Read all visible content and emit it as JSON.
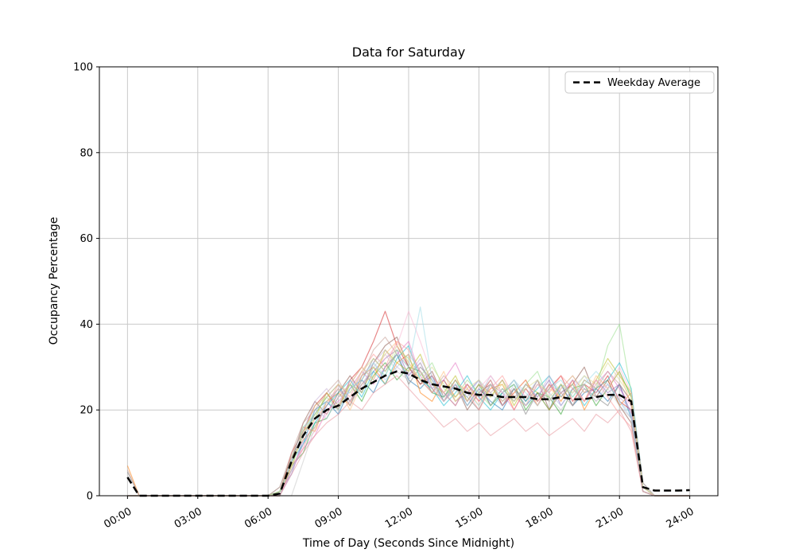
{
  "chart_data": {
    "type": "line",
    "title": "Data for Saturday",
    "xlabel": "Time of Day (Seconds Since Midnight)",
    "ylabel": "Occupancy Percentage",
    "ylim": [
      0,
      100
    ],
    "xlim_seconds": [
      0,
      86400
    ],
    "grid": true,
    "x_tick_seconds": [
      0,
      10800,
      21600,
      32400,
      43200,
      54000,
      64800,
      75600,
      86400
    ],
    "x_tick_labels": [
      "00:00",
      "03:00",
      "06:00",
      "09:00",
      "12:00",
      "15:00",
      "18:00",
      "21:00",
      "24:00"
    ],
    "y_ticks": [
      0,
      20,
      40,
      60,
      80,
      100
    ],
    "legend": {
      "position": "upper right",
      "entries": [
        {
          "label": "Weekday Average",
          "style": "dashed",
          "color": "#000000"
        }
      ]
    },
    "colors": {
      "grid": "#c9c9c9",
      "spine": "#000000",
      "average": "#000000",
      "background": "#ffffff"
    },
    "x_step_seconds": 1800,
    "n_points": 49,
    "average_series": {
      "name": "Weekday Average",
      "color": "#000000",
      "dashed": true,
      "values": [
        4.3,
        0,
        0,
        0,
        0,
        0,
        0,
        0,
        0,
        0,
        0,
        0,
        0,
        0.5,
        8,
        14,
        18,
        20,
        21,
        23,
        25,
        26.5,
        28,
        29,
        28.5,
        27,
        26,
        25.5,
        25,
        24,
        23.5,
        23.5,
        23,
        23,
        23,
        22.5,
        22.5,
        23,
        22.5,
        22.5,
        23,
        23.5,
        23.5,
        22,
        2,
        1.2,
        1.2,
        1.2,
        1.3
      ]
    },
    "individual_series": {
      "active_start_index": 13,
      "active_end_index": 44,
      "series": [
        {
          "color": "#1f77b4",
          "start_spike": 0,
          "values": [
            0,
            6,
            12,
            20,
            22,
            19,
            25,
            27,
            24,
            30,
            33,
            27,
            25,
            28,
            22,
            26,
            21,
            25,
            22,
            20,
            25,
            21,
            24,
            20,
            26,
            21,
            24,
            25,
            22,
            26,
            18,
            1
          ]
        },
        {
          "color": "#ff7f0e",
          "start_spike": 7,
          "values": [
            1,
            9,
            16,
            15,
            22,
            24,
            21,
            28,
            30,
            26,
            31,
            33,
            24,
            22,
            27,
            23,
            26,
            22,
            25,
            26,
            20,
            25,
            21,
            26,
            22,
            27,
            20,
            25,
            27,
            21,
            24,
            3
          ]
        },
        {
          "color": "#2ca02c",
          "start_spike": 0,
          "values": [
            0,
            7,
            10,
            17,
            18,
            23,
            26,
            22,
            28,
            31,
            27,
            30,
            29,
            24,
            23,
            27,
            22,
            26,
            21,
            24,
            26,
            20,
            24,
            23,
            19,
            25,
            26,
            21,
            25,
            29,
            23,
            2
          ]
        },
        {
          "color": "#d62728",
          "start_spike": 0,
          "values": [
            0,
            10,
            15,
            21,
            24,
            20,
            27,
            30,
            36,
            43,
            35,
            30,
            26,
            28,
            24,
            21,
            26,
            23,
            27,
            21,
            24,
            27,
            22,
            25,
            28,
            22,
            26,
            24,
            28,
            22,
            20,
            1
          ]
        },
        {
          "color": "#9467bd",
          "start_spike": 0,
          "values": [
            1,
            5,
            13,
            16,
            21,
            25,
            22,
            26,
            29,
            32,
            34,
            28,
            31,
            25,
            27,
            22,
            24,
            27,
            21,
            25,
            22,
            26,
            23,
            27,
            21,
            25,
            22,
            27,
            24,
            26,
            19,
            2
          ]
        },
        {
          "color": "#8c564b",
          "start_spike": 0,
          "values": [
            0,
            8,
            17,
            22,
            19,
            24,
            28,
            24,
            31,
            35,
            37,
            30,
            26,
            29,
            23,
            26,
            20,
            24,
            26,
            21,
            25,
            22,
            27,
            20,
            24,
            26,
            30,
            23,
            27,
            21,
            17,
            1
          ]
        },
        {
          "color": "#e377c2",
          "start_spike": 0,
          "values": [
            0,
            6,
            11,
            14,
            20,
            22,
            25,
            29,
            26,
            30,
            33,
            36,
            28,
            24,
            27,
            31,
            25,
            22,
            26,
            24,
            20,
            25,
            21,
            26,
            23,
            27,
            22,
            26,
            29,
            25,
            21,
            2
          ]
        },
        {
          "color": "#7f7f7f",
          "start_spike": 5.5,
          "values": [
            2,
            9,
            14,
            19,
            23,
            26,
            21,
            27,
            32,
            29,
            33,
            26,
            30,
            27,
            22,
            25,
            23,
            20,
            26,
            22,
            25,
            19,
            24,
            22,
            26,
            21,
            25,
            23,
            21,
            26,
            22,
            1
          ]
        },
        {
          "color": "#bcbd22",
          "start_spike": 0,
          "values": [
            0,
            7,
            15,
            18,
            24,
            21,
            26,
            30,
            27,
            34,
            31,
            29,
            33,
            26,
            24,
            28,
            22,
            26,
            23,
            27,
            21,
            26,
            24,
            20,
            25,
            28,
            24,
            27,
            32,
            28,
            24,
            2
          ]
        },
        {
          "color": "#17becf",
          "start_spike": 0,
          "values": [
            1,
            8,
            12,
            17,
            21,
            24,
            27,
            23,
            29,
            26,
            32,
            35,
            27,
            25,
            21,
            24,
            28,
            23,
            20,
            24,
            27,
            22,
            25,
            28,
            23,
            26,
            21,
            25,
            27,
            31,
            25,
            3
          ]
        },
        {
          "color": "#aec7e8",
          "start_spike": 0,
          "values": [
            0,
            5,
            14,
            20,
            18,
            23,
            24,
            28,
            31,
            27,
            30,
            33,
            29,
            26,
            22,
            26,
            23,
            27,
            24,
            21,
            26,
            23,
            27,
            24,
            21,
            25,
            28,
            24,
            26,
            22,
            18,
            1
          ]
        },
        {
          "color": "#ffbb78",
          "start_spike": 0,
          "values": [
            0,
            9,
            13,
            16,
            22,
            25,
            20,
            26,
            28,
            33,
            36,
            31,
            27,
            24,
            29,
            22,
            25,
            21,
            26,
            22,
            24,
            27,
            21,
            25,
            23,
            26,
            22,
            28,
            25,
            29,
            21,
            2
          ]
        },
        {
          "color": "#98df8a",
          "start_spike": 0,
          "values": [
            1,
            6,
            16,
            19,
            23,
            20,
            26,
            24,
            30,
            28,
            34,
            32,
            28,
            31,
            25,
            23,
            27,
            24,
            21,
            25,
            22,
            26,
            29,
            22,
            26,
            23,
            27,
            25,
            35,
            40,
            24,
            2
          ]
        },
        {
          "color": "#ff9896",
          "start_spike": 0,
          "values": [
            0,
            7,
            11,
            18,
            21,
            26,
            23,
            29,
            33,
            30,
            36,
            34,
            29,
            25,
            22,
            27,
            24,
            20,
            25,
            28,
            23,
            21,
            26,
            24,
            28,
            25,
            22,
            27,
            23,
            19,
            16,
            1
          ]
        },
        {
          "color": "#c5b0d5",
          "start_spike": 0,
          "values": [
            0,
            8,
            15,
            22,
            25,
            21,
            27,
            25,
            31,
            34,
            30,
            28,
            32,
            27,
            24,
            21,
            26,
            23,
            28,
            24,
            22,
            26,
            23,
            28,
            24,
            27,
            25,
            22,
            26,
            23,
            20,
            2
          ]
        },
        {
          "color": "#c49c94",
          "start_spike": 6,
          "values": [
            2,
            10,
            17,
            20,
            24,
            27,
            22,
            28,
            34,
            37,
            33,
            30,
            27,
            24,
            28,
            25,
            22,
            26,
            24,
            27,
            23,
            25,
            22,
            26,
            24,
            21,
            27,
            25,
            29,
            26,
            22,
            1
          ]
        },
        {
          "color": "#f7b6d2",
          "start_spike": 0,
          "values": [
            0,
            6,
            12,
            15,
            19,
            23,
            26,
            30,
            27,
            32,
            35,
            43,
            36,
            28,
            24,
            26,
            22,
            25,
            28,
            24,
            27,
            23,
            26,
            22,
            25,
            28,
            24,
            27,
            25,
            30,
            24,
            3
          ]
        },
        {
          "color": "#dbdb8d",
          "start_spike": 0,
          "values": [
            1,
            7,
            14,
            21,
            23,
            26,
            24,
            29,
            32,
            29,
            35,
            31,
            27,
            30,
            26,
            22,
            25,
            27,
            23,
            26,
            22,
            25,
            27,
            23,
            26,
            24,
            28,
            26,
            31,
            27,
            23,
            2
          ]
        },
        {
          "color": "#9edae5",
          "start_spike": 0,
          "values": [
            0,
            9,
            16,
            18,
            22,
            20,
            25,
            27,
            31,
            28,
            33,
            30,
            44,
            27,
            23,
            26,
            24,
            21,
            26,
            23,
            27,
            24,
            21,
            25,
            27,
            23,
            26,
            29,
            26,
            22,
            19,
            1
          ]
        },
        {
          "color": "#c7c7c7",
          "start_spike": 0,
          "values": [
            0,
            0,
            8,
            16,
            22,
            25,
            21,
            26,
            30,
            33,
            29,
            27,
            31,
            26,
            22,
            25,
            21,
            24,
            27,
            22,
            25,
            21,
            26,
            23,
            20,
            24,
            26,
            22,
            25,
            21,
            18,
            1
          ]
        },
        {
          "color": "#e7969c",
          "start_spike": 0,
          "values": [
            0,
            5,
            10,
            14,
            17,
            19,
            22,
            20,
            24,
            26,
            28,
            25,
            22,
            19,
            16,
            18,
            15,
            17,
            14,
            16,
            18,
            15,
            17,
            14,
            16,
            18,
            15,
            19,
            17,
            20,
            15,
            1
          ]
        }
      ]
    }
  }
}
